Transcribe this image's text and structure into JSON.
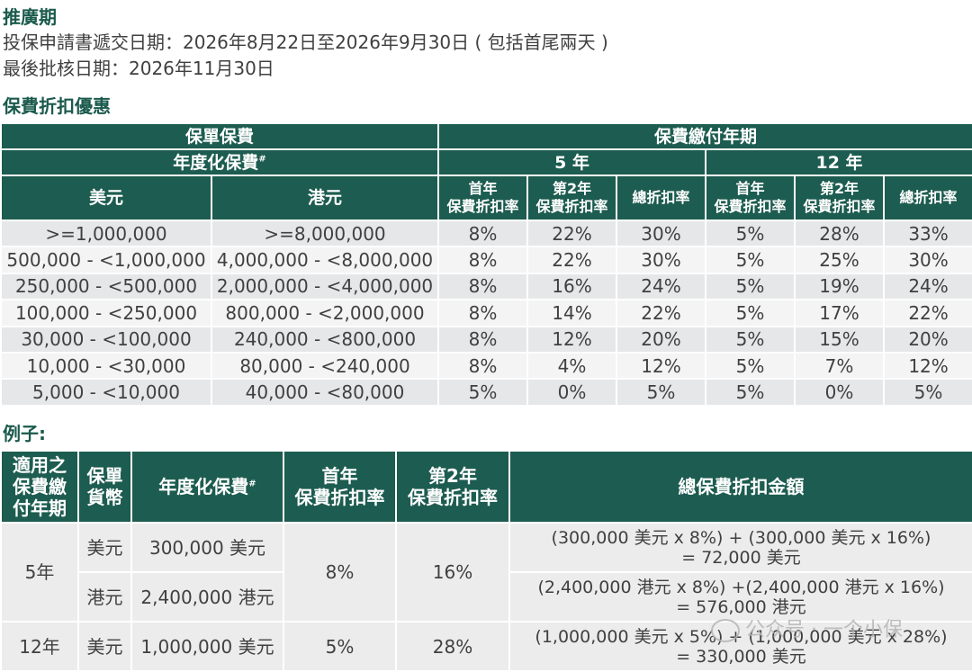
{
  "promo": {
    "heading": "推廣期",
    "application_line": "投保申請書遞交日期：2026年8月22日至2026年9月30日 ( 包括首尾兩天 )",
    "approval_line": "最後批核日期：2026年11月30日"
  },
  "discount": {
    "heading": "保費折扣優惠",
    "header": {
      "policy_premium": "保單保費",
      "payment_term": "保費繳付年期",
      "annualized": "年度化保費",
      "hash": "#",
      "term_5": "5 年",
      "term_12": "12 年",
      "usd": "美元",
      "hkd": "港元",
      "first_year_l1": "首年",
      "first_year_l2": "保費折扣率",
      "second_year_l1": "第2年",
      "second_year_l2": "保費折扣率",
      "total_rate": "總折扣率"
    },
    "rows": [
      {
        "usd": ">=1,000,000",
        "hkd": ">=8,000,000",
        "y5_first": "8%",
        "y5_second": "22%",
        "y5_total": "30%",
        "y12_first": "5%",
        "y12_second": "28%",
        "y12_total": "33%"
      },
      {
        "usd": "500,000 - <1,000,000",
        "hkd": "4,000,000 - <8,000,000",
        "y5_first": "8%",
        "y5_second": "22%",
        "y5_total": "30%",
        "y12_first": "5%",
        "y12_second": "25%",
        "y12_total": "30%"
      },
      {
        "usd": "250,000 - <500,000",
        "hkd": "2,000,000 - <4,000,000",
        "y5_first": "8%",
        "y5_second": "16%",
        "y5_total": "24%",
        "y12_first": "5%",
        "y12_second": "19%",
        "y12_total": "24%"
      },
      {
        "usd": "100,000 - <250,000",
        "hkd": "800,000 - <2,000,000",
        "y5_first": "8%",
        "y5_second": "14%",
        "y5_total": "22%",
        "y12_first": "5%",
        "y12_second": "17%",
        "y12_total": "22%"
      },
      {
        "usd": "30,000 - <100,000",
        "hkd": "240,000 - <800,000",
        "y5_first": "8%",
        "y5_second": "12%",
        "y5_total": "20%",
        "y12_first": "5%",
        "y12_second": "15%",
        "y12_total": "20%"
      },
      {
        "usd": "10,000 - <30,000",
        "hkd": "80,000 - <240,000",
        "y5_first": "8%",
        "y5_second": "4%",
        "y5_total": "12%",
        "y12_first": "5%",
        "y12_second": "7%",
        "y12_total": "12%"
      },
      {
        "usd": "5,000 - <10,000",
        "hkd": "40,000 - <80,000",
        "y5_first": "5%",
        "y5_second": "0%",
        "y5_total": "5%",
        "y12_first": "5%",
        "y12_second": "0%",
        "y12_total": "5%"
      }
    ]
  },
  "example": {
    "heading": "例子:",
    "header": {
      "term_l1": "適用之",
      "term_l2": "保費繳",
      "term_l3": "付年期",
      "currency_l1": "保單",
      "currency_l2": "貨幣",
      "annualized": "年度化保費",
      "hash": "#",
      "first_l1": "首年",
      "first_l2": "保費折扣率",
      "second_l1": "第2年",
      "second_l2": "保費折扣率",
      "total_amount": "總保費折扣金額"
    },
    "rows": [
      {
        "term": "5年",
        "currency": "美元",
        "premium": "300,000 美元",
        "first": "8%",
        "second": "16%",
        "formula_l1": "(300,000 美元 x 8%) + (300,000 美元 x 16%)",
        "formula_l2": "= 72,000 美元"
      },
      {
        "term": "",
        "currency": "港元",
        "premium": "2,400,000 港元",
        "first": "",
        "second": "",
        "formula_l1": "(2,400,000 港元 x 8%) +(2,400,000 港元 x 16%)",
        "formula_l2": "= 576,000 港元"
      },
      {
        "term": "12年",
        "currency": "美元",
        "premium": "1,000,000 美元",
        "first": "5%",
        "second": "28%",
        "formula_l1": "(1,000,000 美元 x 5%) + (1,000,000 美元 x 28%)",
        "formula_l2": "= 330,000 美元"
      }
    ]
  },
  "watermark": {
    "text": "公众号 · 一个小保"
  }
}
